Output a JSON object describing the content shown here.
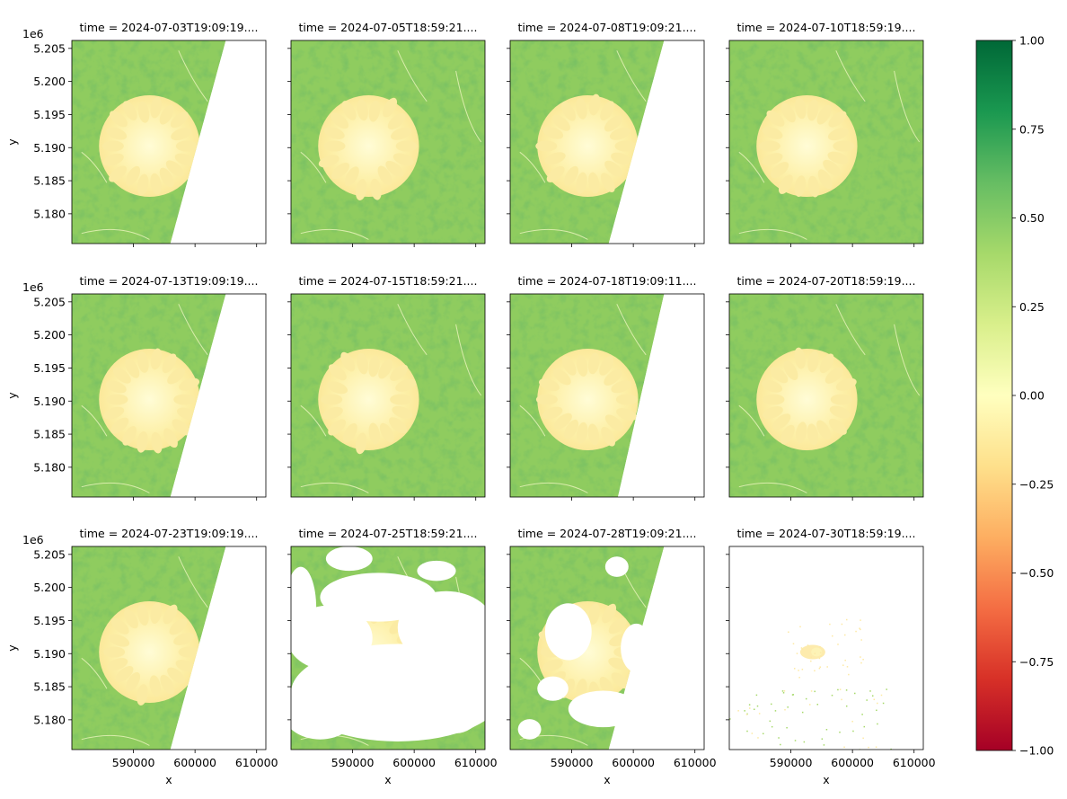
{
  "chart_data": {
    "type": "heatmap",
    "layout": {
      "rows": 3,
      "cols": 4,
      "shared_x": true,
      "shared_y": true
    },
    "xlabel": "x",
    "ylabel": "y",
    "y_offset_label": "1e6",
    "xlim": [
      580000,
      611500
    ],
    "ylim": [
      5.1755,
      5.2062
    ],
    "x_ticks": [
      590000,
      600000,
      610000
    ],
    "x_tick_labels": [
      "590000",
      "600000",
      "610000"
    ],
    "y_ticks": [
      5.18,
      5.185,
      5.19,
      5.195,
      5.2,
      5.205
    ],
    "y_tick_labels": [
      "5.180",
      "5.185",
      "5.190",
      "5.195",
      "5.200",
      "5.205"
    ],
    "colorbar": {
      "cmap": "RdYlGn",
      "range": [
        -1,
        1
      ],
      "ticks": [
        1.0,
        0.75,
        0.5,
        0.25,
        0.0,
        -0.25,
        -0.5,
        -0.75,
        -1.0
      ],
      "tick_labels": [
        "1.00",
        "0.75",
        "0.50",
        "0.25",
        "0.00",
        "−0.25",
        "−0.50",
        "−0.75",
        "−1.00"
      ],
      "stops": [
        "#a50026",
        "#d73027",
        "#f46d43",
        "#fdae61",
        "#fee08b",
        "#ffffbf",
        "#d9ef8b",
        "#a6d96a",
        "#66bd63",
        "#1a9850",
        "#006837"
      ]
    },
    "panels": [
      {
        "title": "time = 2024-07-03T19:09:19....",
        "coverage": "west-swath",
        "swath_top_x": 605000,
        "swath_bottom_x": 596000
      },
      {
        "title": "time = 2024-07-05T18:59:21....",
        "coverage": "full"
      },
      {
        "title": "time = 2024-07-08T19:09:21....",
        "coverage": "west-swath",
        "swath_top_x": 605000,
        "swath_bottom_x": 596000
      },
      {
        "title": "time = 2024-07-10T18:59:19....",
        "coverage": "full"
      },
      {
        "title": "time = 2024-07-13T19:09:19....",
        "coverage": "west-swath",
        "swath_top_x": 605000,
        "swath_bottom_x": 596000
      },
      {
        "title": "time = 2024-07-15T18:59:21....",
        "coverage": "full"
      },
      {
        "title": "time = 2024-07-18T19:09:11....",
        "coverage": "west-swath",
        "swath_top_x": 605000,
        "swath_bottom_x": 597500
      },
      {
        "title": "time = 2024-07-20T18:59:19....",
        "coverage": "full"
      },
      {
        "title": "time = 2024-07-23T19:09:19....",
        "coverage": "west-swath",
        "swath_top_x": 605000,
        "swath_bottom_x": 596000
      },
      {
        "title": "time = 2024-07-25T18:59:21....",
        "coverage": "cloudy"
      },
      {
        "title": "time = 2024-07-28T19:09:21....",
        "coverage": "west-swath-cloudy",
        "swath_top_x": 605000,
        "swath_bottom_x": 596000
      },
      {
        "title": "time = 2024-07-30T18:59:19....",
        "coverage": "mostly-empty"
      }
    ]
  }
}
